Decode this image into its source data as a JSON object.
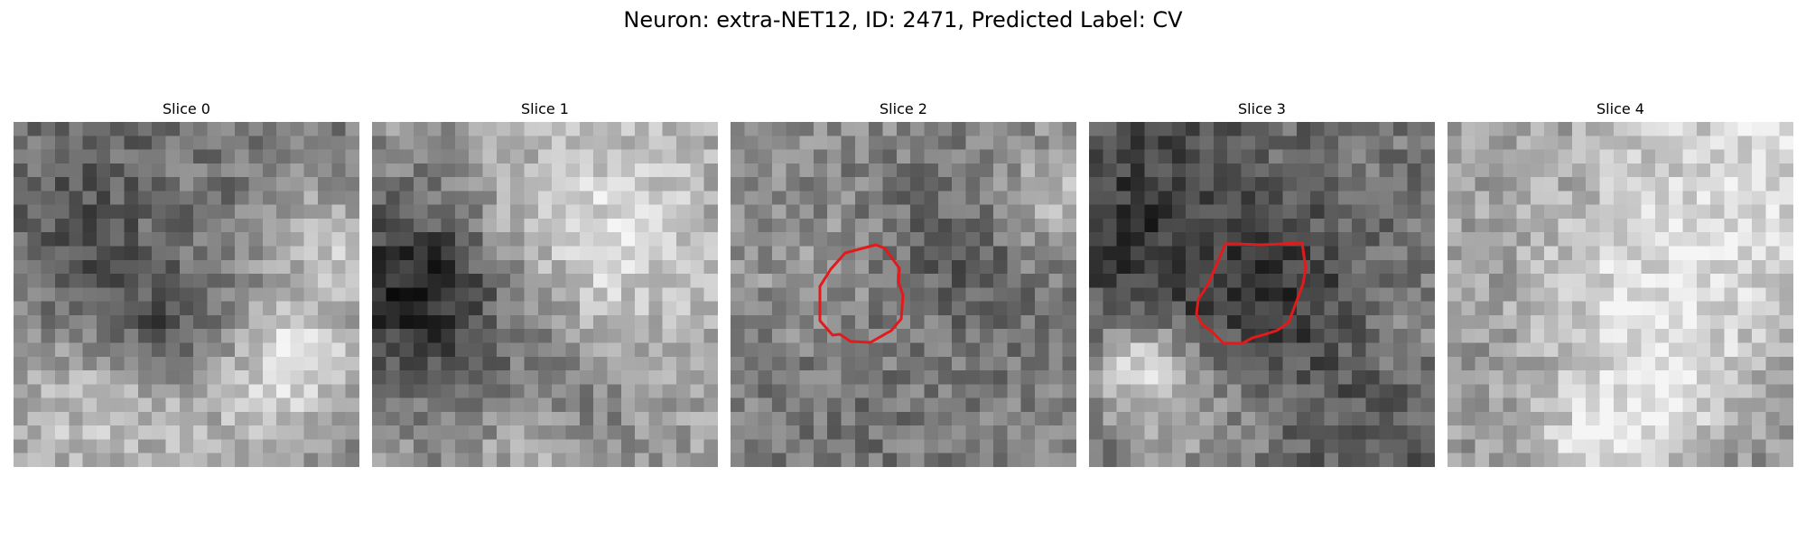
{
  "figure": {
    "suptitle": "Neuron: extra-NET12, ID: 2471, Predicted Label: CV"
  },
  "panels": [
    {
      "title": "Slice 0",
      "has_roi": false
    },
    {
      "title": "Slice 1",
      "has_roi": false
    },
    {
      "title": "Slice 2",
      "has_roi": true
    },
    {
      "title": "Slice 3",
      "has_roi": true
    },
    {
      "title": "Slice 4",
      "has_roi": false
    }
  ],
  "colors": {
    "roi_contour": "#e31a1c",
    "background": "#ffffff",
    "colormap": "gray"
  }
}
